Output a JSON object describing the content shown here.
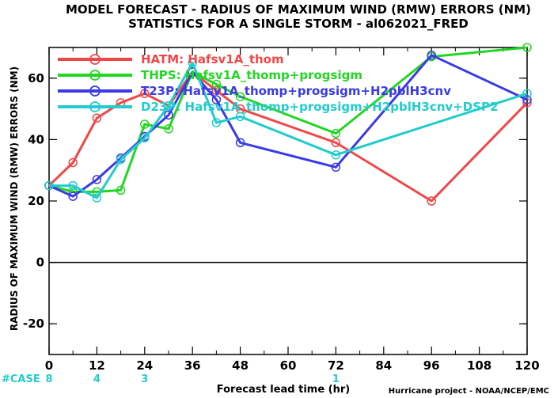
{
  "chart_data": {
    "type": "line",
    "title": "MODEL FORECAST - RADIUS OF MAXIMUM WIND (RMW) ERRORS (NM)",
    "subtitle": "STATISTICS FOR A SINGLE STORM - al062021_FRED",
    "xlabel": "Forecast lead time (hr)",
    "ylabel": "RADIUS OF MAXIMUM WIND (RMW) ERRORS (NM)",
    "xlim": [
      0,
      120
    ],
    "ylim": [
      -30,
      70
    ],
    "xticks": [
      "0",
      "12",
      "24",
      "36",
      "48",
      "60",
      "72",
      "84",
      "96",
      "108",
      "120"
    ],
    "yticks": [
      "-20",
      "0",
      "20",
      "40",
      "60"
    ],
    "grid": false,
    "legend_position": "top-left",
    "zero_line": true,
    "series": [
      {
        "name": "HATM: Hafsv1A_thom",
        "color": "#f04848",
        "x": [
          0,
          6,
          12,
          18,
          24,
          30,
          36,
          42,
          48,
          72,
          96,
          120
        ],
        "y": [
          25,
          32.5,
          47,
          52,
          55,
          51,
          62,
          56,
          50,
          39,
          20,
          52
        ]
      },
      {
        "name": "THPS: Hafsv1A_thomp+progsigm",
        "color": "#22d622",
        "x": [
          0,
          6,
          12,
          18,
          24,
          30,
          36,
          42,
          48,
          72,
          96,
          120
        ],
        "y": [
          25,
          23,
          23,
          23.5,
          45,
          43.5,
          62,
          58,
          54,
          42,
          67,
          70
        ]
      },
      {
        "name": "T23P: Hafsv1A_thomp+progsigm+H2pblH3cnv",
        "color": "#3a3ae6",
        "x": [
          0,
          6,
          12,
          18,
          24,
          30,
          36,
          42,
          48,
          72,
          96,
          120
        ],
        "y": [
          25,
          21.5,
          27,
          34,
          41,
          48,
          62,
          53,
          39,
          31,
          67.5,
          53
        ]
      },
      {
        "name": "D23P: Hafsv1A_thomp+progsigm+H2pblH3cnv+DSP2",
        "color": "#22cccc",
        "x": [
          0,
          6,
          12,
          18,
          24,
          30,
          36,
          42,
          48,
          72,
          120
        ],
        "y": [
          25,
          25,
          21,
          33.5,
          40.5,
          51,
          65,
          45.5,
          47.5,
          35,
          55
        ]
      }
    ],
    "case_counts": {
      "label": "#CASE",
      "color": "#22cccc",
      "entries": [
        {
          "x": 0,
          "text": "8"
        },
        {
          "x": 12,
          "text": "4"
        },
        {
          "x": 24,
          "text": "3"
        },
        {
          "x": 72,
          "text": "1"
        }
      ]
    },
    "credit": "Hurricane project - NOAA/NCEP/EMC"
  }
}
